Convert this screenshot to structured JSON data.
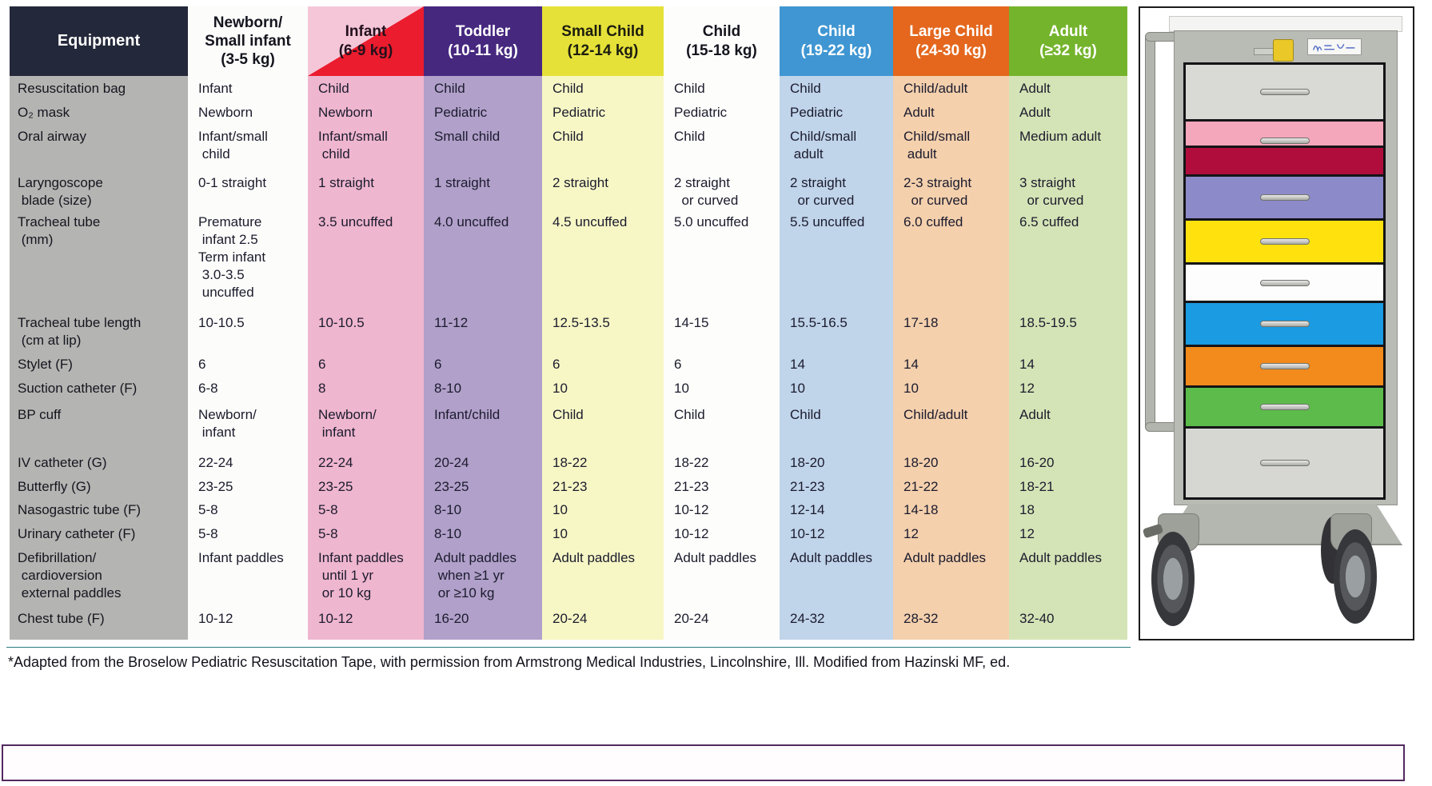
{
  "table": {
    "headers": [
      {
        "label": "Equipment",
        "header_bg": "#23283a",
        "header_text": "#ffffff",
        "body_bg": "#b4b4b2"
      },
      {
        "label": "Newborn/\nSmall infant\n(3-5 kg)",
        "header_bg": "#fcfcfa",
        "header_text": "#15151f",
        "body_bg": "#fcfcfa"
      },
      {
        "label": "Infant\n(6-9 kg)",
        "header_bg": "#f4c6d8",
        "header_text": "#23101c",
        "body_bg": "#efb6cf",
        "triangle": true
      },
      {
        "label": "Toddler\n(10-11 kg)",
        "header_bg": "#46287f",
        "header_text": "#ffffff",
        "body_bg": "#b1a0ca"
      },
      {
        "label": "Small Child\n(12-14 kg)",
        "header_bg": "#e5e138",
        "header_text": "#1c1c10",
        "body_bg": "#f7f7c6"
      },
      {
        "label": "Child\n(15-18 kg)",
        "header_bg": "#fdfdfc",
        "header_text": "#15151f",
        "body_bg": "#fdfdfb"
      },
      {
        "label": "Child\n(19-22 kg)",
        "header_bg": "#3f96d2",
        "header_text": "#ffffff",
        "body_bg": "#c0d4ea"
      },
      {
        "label": "Large Child\n(24-30 kg)",
        "header_bg": "#e4671d",
        "header_text": "#ffffff",
        "body_bg": "#f4d0ad"
      },
      {
        "label": "Adult\n(≥32 kg)",
        "header_bg": "#74b42c",
        "header_text": "#ffffff",
        "body_bg": "#d5e4b6"
      }
    ],
    "rows": [
      {
        "equipment": "Resuscitation bag",
        "values": [
          "Infant",
          "Child",
          "Child",
          "Child",
          "Child",
          "Child",
          "Child/adult",
          "Adult"
        ]
      },
      {
        "equipment": "O₂ mask",
        "values": [
          "Newborn",
          "Newborn",
          "Pediatric",
          "Pediatric",
          "Pediatric",
          "Pediatric",
          "Adult",
          "Adult"
        ]
      },
      {
        "equipment": "Oral airway",
        "values": [
          "Infant/small\n child",
          "Infant/small\n child",
          "Small child",
          "Child",
          "Child",
          "Child/small\n adult",
          "Child/small\n adult",
          "Medium adult"
        ]
      },
      {
        "equipment": "Laryngoscope\n blade (size)",
        "values": [
          "0-1 straight",
          "1 straight",
          "1 straight",
          "2 straight",
          "2 straight\n  or curved",
          "2 straight\n  or curved",
          "2-3 straight\n  or curved",
          "3 straight\n  or curved"
        ]
      },
      {
        "equipment": "Tracheal tube\n (mm)",
        "values": [
          "Premature\n infant 2.5\nTerm infant\n 3.0-3.5\n uncuffed",
          "3.5 uncuffed",
          "4.0 uncuffed",
          "4.5 uncuffed",
          "5.0 uncuffed",
          "5.5 uncuffed",
          "6.0 cuffed",
          "6.5 cuffed"
        ]
      },
      {
        "equipment": "Tracheal tube length\n (cm at lip)",
        "values": [
          "10-10.5",
          "10-10.5",
          "11-12",
          "12.5-13.5",
          "14-15",
          "15.5-16.5",
          "17-18",
          "18.5-19.5"
        ]
      },
      {
        "equipment": "Stylet (F)",
        "values": [
          "6",
          "6",
          "6",
          "6",
          "6",
          "14",
          "14",
          "14"
        ]
      },
      {
        "equipment": "Suction catheter (F)",
        "values": [
          "6-8",
          "8",
          "8-10",
          "10",
          "10",
          "10",
          "10",
          "12"
        ]
      },
      {
        "equipment": "BP cuff",
        "values": [
          "Newborn/\n infant",
          "Newborn/\n infant",
          "Infant/child",
          "Child",
          "Child",
          "Child",
          "Child/adult",
          "Adult"
        ]
      },
      {
        "equipment": "IV catheter (G)",
        "values": [
          "22-24",
          "22-24",
          "20-24",
          "18-22",
          "18-22",
          "18-20",
          "18-20",
          "16-20"
        ]
      },
      {
        "equipment": "Butterfly (G)",
        "values": [
          "23-25",
          "23-25",
          "23-25",
          "21-23",
          "21-23",
          "21-23",
          "21-22",
          "18-21"
        ]
      },
      {
        "equipment": "Nasogastric tube (F)",
        "values": [
          "5-8",
          "5-8",
          "8-10",
          "10",
          "10-12",
          "12-14",
          "14-18",
          "18"
        ]
      },
      {
        "equipment": "Urinary catheter (F)",
        "values": [
          "5-8",
          "5-8",
          "8-10",
          "10",
          "10-12",
          "10-12",
          "12",
          "12"
        ]
      },
      {
        "equipment": "Defibrillation/\n cardioversion\n external paddles",
        "values": [
          "Infant paddles",
          "Infant paddles\n until 1 yr\n or 10 kg",
          "Adult paddles\n when ≥1 yr\n or ≥10 kg",
          "Adult paddles",
          "Adult paddles",
          "Adult paddles",
          "Adult paddles",
          "Adult paddles"
        ]
      },
      {
        "equipment": "Chest tube (F)",
        "values": [
          "10-12",
          "10-12",
          "16-20",
          "20-24",
          "20-24",
          "24-32",
          "28-32",
          "32-40"
        ]
      }
    ]
  },
  "footnote": "*Adapted from the Broselow Pediatric Resuscitation Tape, with permission from Armstrong Medical Industries, Lincolnshire, Ill. Modified from Hazinski MF, ed.",
  "cart": {
    "drawers": [
      {
        "name": "drawer-gray-top",
        "color": "#d9d9d6",
        "handle": true
      },
      {
        "name": "drawer-pink",
        "color": "#f4a6bb",
        "handle": true,
        "handle_pos": "bottom"
      },
      {
        "name": "drawer-crimson",
        "color": "#b00d3d",
        "handle": false
      },
      {
        "name": "drawer-purple",
        "color": "#8d8ac9",
        "handle": true
      },
      {
        "name": "drawer-yellow",
        "color": "#ffe20d",
        "handle": true
      },
      {
        "name": "drawer-white",
        "color": "#fdfdfd",
        "handle": true
      },
      {
        "name": "drawer-blue",
        "color": "#1b9be2",
        "handle": true
      },
      {
        "name": "drawer-orange",
        "color": "#f28a1c",
        "handle": true
      },
      {
        "name": "drawer-green",
        "color": "#5cbb4a",
        "handle": true
      },
      {
        "name": "drawer-gray-bottom",
        "color": "#d6d6d2",
        "handle": true
      }
    ]
  },
  "accents": {
    "red_triangle": "#ea1c2d",
    "divider_teal": "#4e9aa2",
    "note_box_border": "#532a60"
  }
}
